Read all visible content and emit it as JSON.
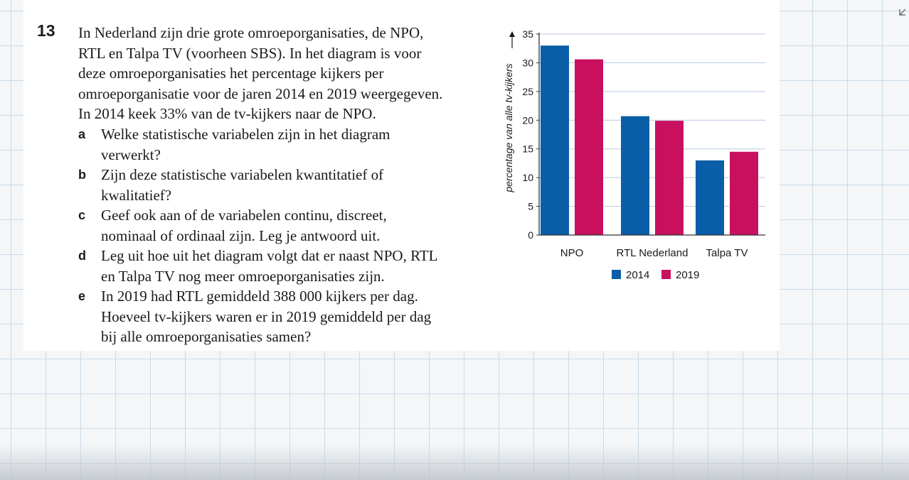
{
  "exercise": {
    "number": "13",
    "intro_lines": [
      "In Nederland zijn drie grote omroeporganisaties, de NPO,",
      "RTL en Talpa TV (voorheen SBS). In het diagram is voor",
      "deze omroeporganisaties het percentage kijkers per",
      "omroeporganisatie voor de jaren 2014 en 2019 weergegeven.",
      "In 2014 keek 33% van de tv-kijkers naar de NPO."
    ],
    "questions": [
      {
        "letter": "a",
        "lines": [
          "Welke statistische variabelen zijn in het diagram",
          "verwerkt?"
        ]
      },
      {
        "letter": "b",
        "lines": [
          "Zijn deze statistische variabelen kwantitatief of",
          "kwalitatief?"
        ]
      },
      {
        "letter": "c",
        "lines": [
          "Geef ook aan of de variabelen continu, discreet,",
          "nominaal of ordinaal zijn. Leg je antwoord uit."
        ]
      },
      {
        "letter": "d",
        "lines": [
          "Leg uit hoe uit het diagram volgt dat er naast NPO, RTL",
          "en Talpa TV nog meer omroeporganisaties zijn."
        ]
      },
      {
        "letter": "e",
        "lines": [
          "In 2019 had RTL gemiddeld 388 000 kijkers per dag.",
          "Hoeveel tv-kijkers waren er in 2019 gemiddeld per dag",
          "bij alle omroeporganisaties samen?"
        ]
      }
    ]
  },
  "icons": {
    "expand": "expand-arrow-icon"
  },
  "chart_data": {
    "type": "bar",
    "categories": [
      "NPO",
      "RTL Nederland",
      "Talpa TV"
    ],
    "series": [
      {
        "name": "2014",
        "color": "#0a5ea8",
        "values": [
          33,
          20.7,
          13
        ]
      },
      {
        "name": "2019",
        "color": "#c8105f",
        "values": [
          30.6,
          19.9,
          14.5
        ]
      }
    ],
    "ylabel": "percentage van alle tv-kijkers",
    "ylim": [
      0,
      35
    ],
    "yticks": [
      0,
      5,
      10,
      15,
      20,
      25,
      30,
      35
    ],
    "grid": true,
    "legend": "bottom"
  }
}
